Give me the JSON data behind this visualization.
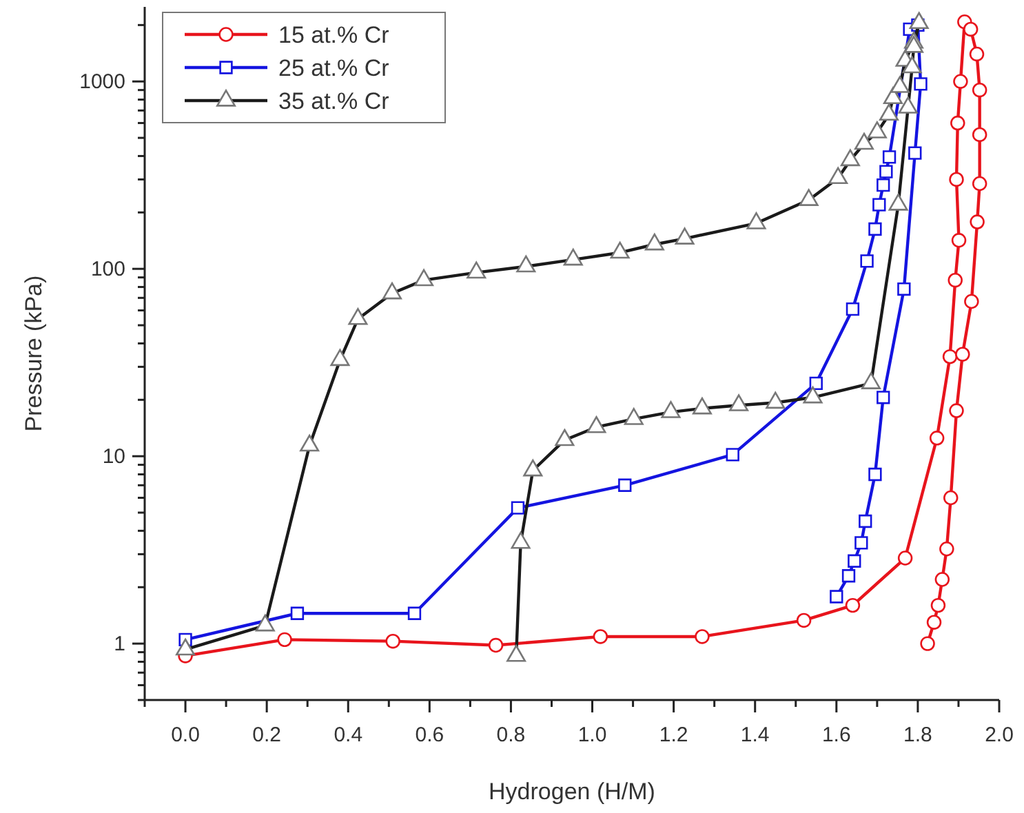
{
  "chart_data": {
    "type": "line",
    "xlabel": "Hydrogen (H/M)",
    "ylabel": "Pressure (kPa)",
    "log": "y",
    "grid": false,
    "legend": "top left",
    "line_style": "solid",
    "xlim": [
      -0.1,
      2.0
    ],
    "xticks": [
      {
        "value": -0.1,
        "label": null
      },
      {
        "value": 0,
        "label": "0.0"
      },
      {
        "value": 0.1,
        "label": null
      },
      {
        "value": 0.2,
        "label": "0.2"
      },
      {
        "value": 0.3,
        "label": null
      },
      {
        "value": 0.4,
        "label": "0.4"
      },
      {
        "value": 0.5,
        "label": null
      },
      {
        "value": 0.6,
        "label": "0.6"
      },
      {
        "value": 0.7,
        "label": null
      },
      {
        "value": 0.8,
        "label": "0.8"
      },
      {
        "value": 0.9,
        "label": null
      },
      {
        "value": 1,
        "label": "1.0"
      },
      {
        "value": 1.1,
        "label": null
      },
      {
        "value": 1.2,
        "label": "1.2"
      },
      {
        "value": 1.3,
        "label": null
      },
      {
        "value": 1.4,
        "label": "1.4"
      },
      {
        "value": 1.5,
        "label": null
      },
      {
        "value": 1.6,
        "label": "1.6"
      },
      {
        "value": 1.7,
        "label": null
      },
      {
        "value": 1.8,
        "label": "1.8"
      },
      {
        "value": 1.9,
        "label": null
      },
      {
        "value": 2,
        "label": "2.0"
      }
    ],
    "ylim": [
      0.5,
      2500
    ],
    "yticks": [
      {
        "value": 0.5,
        "label": null
      },
      {
        "value": 0.6,
        "label": null
      },
      {
        "value": 0.7,
        "label": null
      },
      {
        "value": 0.8,
        "label": null
      },
      {
        "value": 0.9,
        "label": null
      },
      1,
      {
        "value": 2,
        "label": null
      },
      {
        "value": 3,
        "label": null
      },
      {
        "value": 4,
        "label": null
      },
      {
        "value": 5,
        "label": null
      },
      {
        "value": 6,
        "label": null
      },
      {
        "value": 7,
        "label": null
      },
      {
        "value": 8,
        "label": null
      },
      {
        "value": 9,
        "label": null
      },
      10,
      {
        "value": 20,
        "label": null
      },
      {
        "value": 30,
        "label": null
      },
      {
        "value": 40,
        "label": null
      },
      {
        "value": 50,
        "label": null
      },
      {
        "value": 60,
        "label": null
      },
      {
        "value": 70,
        "label": null
      },
      {
        "value": 80,
        "label": null
      },
      {
        "value": 90,
        "label": null
      },
      100,
      {
        "value": 200,
        "label": null
      },
      {
        "value": 300,
        "label": null
      },
      {
        "value": 400,
        "label": null
      },
      {
        "value": 500,
        "label": null
      },
      {
        "value": 600,
        "label": null
      },
      {
        "value": 700,
        "label": null
      },
      {
        "value": 800,
        "label": null
      },
      {
        "value": 900,
        "label": null
      },
      1000,
      {
        "value": 2000,
        "label": null
      }
    ],
    "series": [
      {
        "name": "15 at.% Cr",
        "color": "#e8141c",
        "marker": "circle",
        "x": [
          0,
          0.244,
          0.51,
          0.763,
          1.02,
          1.27,
          1.52,
          1.64,
          1.769,
          1.847,
          1.879,
          1.892,
          1.901,
          1.895,
          1.898,
          1.905,
          1.915,
          1.93,
          1.945,
          1.952,
          1.952,
          1.952,
          1.946,
          1.932,
          1.91,
          1.895,
          1.881,
          1.871,
          1.86,
          1.85,
          1.84,
          1.824
        ],
        "values": [
          0.86,
          1.05,
          1.03,
          0.98,
          1.09,
          1.09,
          1.33,
          1.6,
          2.86,
          12.5,
          34,
          87,
          142,
          300,
          600,
          1000,
          2080,
          1900,
          1400,
          900,
          520,
          285,
          178,
          67,
          35,
          17.5,
          6.0,
          3.2,
          2.2,
          1.6,
          1.3,
          1.0
        ]
      },
      {
        "name": "25 at.% Cr",
        "color": "#1414e0",
        "marker": "square",
        "x": [
          0,
          0.275,
          0.563,
          0.817,
          1.08,
          1.345,
          1.55,
          1.64,
          1.675,
          1.695,
          1.705,
          1.715,
          1.722,
          1.73,
          1.78,
          1.8,
          1.807,
          1.793,
          1.766,
          1.715,
          1.695,
          1.671,
          1.661,
          1.644,
          1.63,
          1.6
        ],
        "values": [
          1.05,
          1.45,
          1.45,
          5.3,
          7.0,
          10.2,
          24.5,
          61,
          110,
          163,
          220,
          280,
          330,
          395,
          1900,
          2000,
          970,
          415,
          78,
          20.6,
          8.0,
          4.5,
          3.45,
          2.76,
          2.3,
          1.78
        ]
      },
      {
        "name": "35 at.% Cr",
        "color": "#1a1a1a",
        "marker": "triangle",
        "x": [
          0,
          0.196,
          0.305,
          0.38,
          0.424,
          0.508,
          0.586,
          0.715,
          0.837,
          0.953,
          1.068,
          1.153,
          1.227,
          1.403,
          1.532,
          1.604,
          1.634,
          1.668,
          1.7,
          1.729,
          1.739,
          1.756,
          1.769,
          1.79,
          1.803,
          1.79,
          1.786,
          1.776,
          1.752,
          1.685,
          1.542,
          1.45,
          1.36,
          1.27,
          1.193,
          1.102,
          1.01,
          0.932,
          0.854,
          0.824,
          0.813
        ],
        "values": [
          0.93,
          1.25,
          11.4,
          32.6,
          54,
          74,
          87,
          95.5,
          103,
          112,
          122,
          135,
          145,
          175,
          233,
          305,
          380,
          465,
          535,
          665,
          815,
          935,
          1290,
          1610,
          2050,
          1530,
          1190,
          725,
          220,
          24.5,
          20.6,
          19.3,
          18.7,
          18.0,
          17.2,
          15.8,
          14.3,
          12.2,
          8.4,
          3.45,
          0.86
        ]
      }
    ]
  }
}
